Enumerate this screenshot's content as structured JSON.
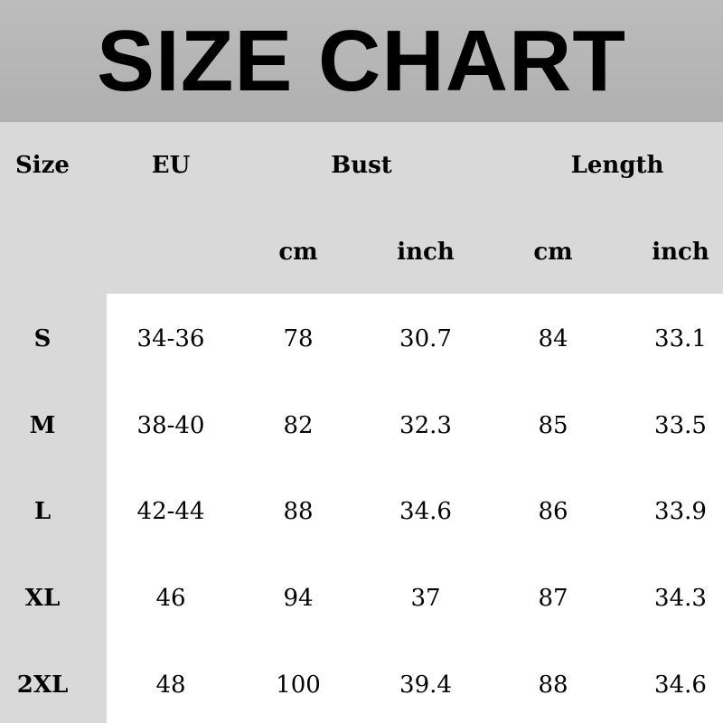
{
  "title": "SIZE CHART",
  "headers": {
    "size": "Size",
    "eu": "EU",
    "bust": "Bust",
    "length": "Length",
    "sub": [
      "cm",
      "inch",
      "cm",
      "inch"
    ]
  },
  "rows": [
    [
      "S",
      "34-36",
      "78",
      "30.7",
      "84",
      "33.1"
    ],
    [
      "M",
      "38-40",
      "82",
      "32.3",
      "85",
      "33.5"
    ],
    [
      "L",
      "42-44",
      "88",
      "34.6",
      "86",
      "33.9"
    ],
    [
      "XL",
      "46",
      "94",
      "37",
      "87",
      "34.3"
    ],
    [
      "2XL",
      "48",
      "100",
      "39.4",
      "88",
      "34.6"
    ]
  ],
  "colors": {
    "title_band": "#b3b3b3",
    "header_bg": "#d9d9d9",
    "body_bg": "#ffffff"
  }
}
